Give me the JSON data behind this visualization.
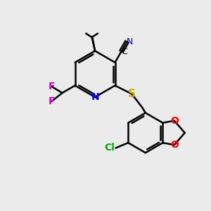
{
  "background_color": "#ebebeb",
  "atom_colors": {
    "N_pyridine": "#0000ff",
    "N_cyano": "#0000cc",
    "S": "#ccaa00",
    "F": "#cc00cc",
    "Cl": "#00aa00",
    "O": "#ff0000",
    "C": "#000000"
  },
  "bond_width": 1.8,
  "figsize": [
    3.0,
    3.0
  ],
  "dpi": 100
}
